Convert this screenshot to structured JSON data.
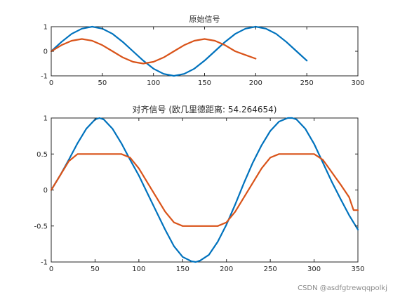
{
  "chart_data": [
    {
      "type": "line",
      "title": "原始信号",
      "xlabel": "",
      "ylabel": "",
      "xlim": [
        0,
        300
      ],
      "ylim": [
        -1,
        1
      ],
      "xticks": [
        0,
        50,
        100,
        150,
        200,
        250,
        300
      ],
      "yticks": [
        -1,
        0,
        1
      ],
      "grid": false,
      "series": [
        {
          "color": "#0072BD",
          "x": [
            0,
            10,
            20,
            30,
            40,
            50,
            60,
            70,
            80,
            90,
            100,
            110,
            120,
            130,
            140,
            150,
            160,
            170,
            180,
            190,
            200,
            210,
            220,
            230,
            240,
            250
          ],
          "y": [
            0,
            0.38,
            0.71,
            0.92,
            1.0,
            0.92,
            0.71,
            0.38,
            0.0,
            -0.38,
            -0.71,
            -0.92,
            -1.0,
            -0.92,
            -0.71,
            -0.38,
            0.0,
            0.38,
            0.71,
            0.92,
            1.0,
            0.92,
            0.71,
            0.38,
            0.0,
            -0.38
          ]
        },
        {
          "color": "#D95319",
          "x": [
            0,
            10,
            20,
            30,
            40,
            50,
            60,
            70,
            80,
            90,
            100,
            110,
            120,
            130,
            140,
            150,
            160,
            170,
            180,
            190,
            200
          ],
          "y": [
            0,
            0.25,
            0.43,
            0.5,
            0.43,
            0.25,
            0.0,
            -0.25,
            -0.43,
            -0.5,
            -0.43,
            -0.25,
            0.0,
            0.25,
            0.43,
            0.5,
            0.43,
            0.25,
            0.0,
            -0.15,
            -0.3
          ]
        }
      ]
    },
    {
      "type": "line",
      "title": "对齐信号 (欧几里德距离: 54.264654)",
      "xlabel": "",
      "ylabel": "",
      "xlim": [
        0,
        350
      ],
      "ylim": [
        -1,
        1
      ],
      "xticks": [
        0,
        50,
        100,
        150,
        200,
        250,
        300,
        350
      ],
      "yticks": [
        -1,
        -0.5,
        0,
        0.5,
        1
      ],
      "grid": false,
      "series": [
        {
          "color": "#0072BD",
          "x": [
            0,
            10,
            20,
            30,
            40,
            50,
            55,
            60,
            70,
            80,
            90,
            100,
            110,
            120,
            130,
            140,
            150,
            160,
            165,
            170,
            180,
            190,
            200,
            210,
            220,
            230,
            240,
            250,
            260,
            270,
            275,
            280,
            290,
            300,
            310,
            320,
            330,
            340,
            350
          ],
          "y": [
            0,
            0.2,
            0.42,
            0.65,
            0.85,
            0.98,
            1.0,
            0.98,
            0.85,
            0.65,
            0.42,
            0.2,
            -0.05,
            -0.3,
            -0.55,
            -0.78,
            -0.93,
            -0.99,
            -1.0,
            -0.98,
            -0.9,
            -0.72,
            -0.48,
            -0.2,
            0.1,
            0.38,
            0.62,
            0.82,
            0.95,
            1.0,
            1.0,
            0.98,
            0.85,
            0.64,
            0.38,
            0.12,
            -0.12,
            -0.35,
            -0.55
          ]
        },
        {
          "color": "#D95319",
          "x": [
            0,
            10,
            20,
            30,
            40,
            50,
            60,
            70,
            80,
            90,
            100,
            110,
            120,
            130,
            140,
            150,
            160,
            170,
            180,
            190,
            200,
            210,
            220,
            230,
            240,
            250,
            260,
            270,
            280,
            290,
            300,
            310,
            320,
            330,
            340,
            345,
            350
          ],
          "y": [
            0,
            0.2,
            0.4,
            0.5,
            0.5,
            0.5,
            0.5,
            0.5,
            0.5,
            0.45,
            0.3,
            0.1,
            -0.1,
            -0.3,
            -0.45,
            -0.5,
            -0.5,
            -0.5,
            -0.5,
            -0.5,
            -0.45,
            -0.3,
            -0.1,
            0.1,
            0.3,
            0.45,
            0.5,
            0.5,
            0.5,
            0.5,
            0.5,
            0.42,
            0.25,
            0.08,
            -0.1,
            -0.28,
            -0.28
          ]
        }
      ]
    }
  ],
  "watermark": "CSDN @asdfgtrewqqpolkj"
}
